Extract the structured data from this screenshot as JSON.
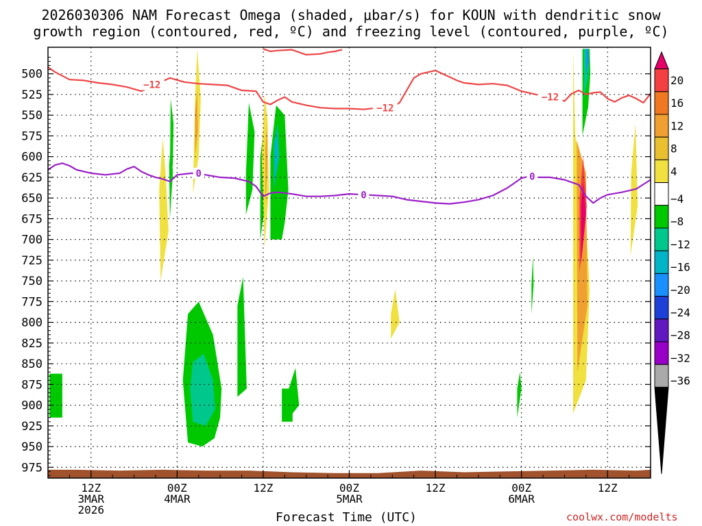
{
  "chart_data": {
    "type": "heatmap",
    "title": "2026030306 NAM Forecast Omega (shaded, μbar/s) for KOUN with dendritic snow",
    "subtitle": "growth region (contoured, red, ºC) and freezing level (contoured, purple, ºC)",
    "xlabel": "Forecast Time (UTC)",
    "ylabel": "",
    "credit": "coolwx.com/modelts",
    "y_reversed": true,
    "ylim": [
      988,
      468
    ],
    "xlim_hours": [
      6,
      90
    ],
    "y_ticks": [
      500,
      525,
      550,
      575,
      600,
      625,
      650,
      675,
      700,
      725,
      750,
      775,
      800,
      825,
      850,
      875,
      900,
      925,
      950,
      975
    ],
    "x_ticks": [
      {
        "hour": 12,
        "labels": [
          "12Z",
          "3MAR",
          "2026"
        ]
      },
      {
        "hour": 24,
        "labels": [
          "00Z",
          "4MAR"
        ]
      },
      {
        "hour": 36,
        "labels": [
          "12Z"
        ]
      },
      {
        "hour": 48,
        "labels": [
          "00Z",
          "5MAR"
        ]
      },
      {
        "hour": 60,
        "labels": [
          "12Z"
        ]
      },
      {
        "hour": 72,
        "labels": [
          "00Z",
          "6MAR"
        ]
      },
      {
        "hour": 84,
        "labels": [
          "12Z"
        ]
      }
    ],
    "grid": true,
    "colorbar": {
      "placement": "right",
      "labels": [
        "20",
        "16",
        "12",
        "8",
        "4",
        "−4",
        "−8",
        "−12",
        "−16",
        "−20",
        "−24",
        "−28",
        "−32",
        "−36"
      ],
      "colors": [
        "#e8006a",
        "#f44040",
        "#f07820",
        "#f0a030",
        "#e8c030",
        "#f0e040",
        "#ffffff",
        "#00c800",
        "#00c88c",
        "#00b4c8",
        "#1890ff",
        "#1c40d8",
        "#6018c0",
        "#9800c8",
        "#aaaaaa",
        "#000000"
      ]
    },
    "contour_labels": {
      "dgz": "−12",
      "freezing": "0"
    },
    "dgz_line": {
      "color": "#ee4444",
      "x": [
        6,
        7,
        9,
        11,
        13,
        15,
        17,
        19,
        21,
        23,
        25,
        27,
        29,
        31,
        33,
        35,
        36,
        37,
        38,
        39,
        40,
        42,
        44,
        46,
        48,
        50,
        52,
        54,
        55,
        56,
        57,
        58,
        59,
        60,
        61,
        62,
        63,
        64,
        66,
        68,
        70,
        72,
        74,
        76,
        78,
        79,
        80,
        81,
        82,
        83,
        84,
        85,
        86,
        87,
        88,
        89,
        90
      ],
      "y": [
        492,
        498,
        507,
        508,
        511,
        513,
        516,
        521,
        513,
        505,
        510,
        512,
        513,
        514,
        520,
        521,
        534,
        537,
        532,
        528,
        534,
        538,
        541,
        542,
        542,
        543,
        541,
        540,
        535,
        520,
        505,
        500,
        498,
        496,
        500,
        504,
        508,
        511,
        513,
        512,
        514,
        521,
        525,
        528,
        533,
        524,
        520,
        525,
        523,
        522,
        530,
        534,
        529,
        526,
        530,
        535,
        524
      ]
    },
    "dgz_top_line": {
      "color": "#ee4444",
      "x": [
        36,
        37,
        38,
        40,
        41,
        42,
        44,
        45,
        46,
        47
      ],
      "y": [
        470,
        473,
        472,
        471,
        474,
        477,
        476,
        474,
        473,
        471
      ]
    },
    "freezing_line": {
      "color": "#9b1ec8",
      "x": [
        6,
        7,
        8,
        9,
        10,
        12,
        14,
        16,
        17,
        18,
        19,
        20,
        21,
        22,
        23,
        24,
        26,
        28,
        30,
        32,
        34,
        35,
        36,
        37,
        38,
        40,
        42,
        44,
        46,
        48,
        50,
        52,
        54,
        56,
        58,
        60,
        62,
        63,
        64,
        66,
        68,
        70,
        71,
        72,
        73,
        74,
        76,
        78,
        79,
        80,
        81,
        82,
        83,
        84,
        86,
        88,
        90
      ],
      "y": [
        616,
        610,
        608,
        611,
        616,
        620,
        622,
        620,
        615,
        612,
        618,
        622,
        625,
        627,
        630,
        622,
        620,
        622,
        625,
        626,
        630,
        636,
        648,
        644,
        643,
        645,
        648,
        648,
        647,
        645,
        646,
        647,
        648,
        652,
        654,
        656,
        657,
        656,
        655,
        652,
        647,
        638,
        632,
        626,
        624,
        625,
        625,
        628,
        631,
        634,
        648,
        656,
        650,
        646,
        643,
        639,
        628
      ]
    },
    "omega_regions": [
      {
        "color": "#00c800",
        "x": [
          6.2,
          8.0,
          8.0,
          6.2
        ],
        "y": [
          915,
          915,
          862,
          862
        ]
      },
      {
        "color": "#00c800",
        "x": [
          6.5,
          7.5,
          7.5,
          6.5
        ],
        "y": [
          910,
          910,
          868,
          868
        ]
      },
      {
        "color": "#f0e040",
        "x": [
          21.7,
          22.8,
          22.4,
          22.0,
          21.5,
          21.7
        ],
        "y": [
          750,
          690,
          620,
          578,
          640,
          750
        ]
      },
      {
        "color": "#00c800",
        "x": [
          23.0,
          23.4,
          23.2,
          22.9
        ],
        "y": [
          675,
          620,
          580,
          610
        ]
      },
      {
        "color": "#00c800",
        "x": [
          23.1,
          23.5,
          23.4,
          23.0
        ],
        "y": [
          530,
          560,
          610,
          620
        ]
      },
      {
        "color": "#f0e040",
        "x": [
          26.2,
          27.0,
          27.3,
          26.8,
          26.5,
          26.2
        ],
        "y": [
          645,
          600,
          530,
          470,
          530,
          645
        ]
      },
      {
        "color": "#f0a030",
        "x": [
          26.5,
          26.9,
          26.8,
          26.5
        ],
        "y": [
          600,
          570,
          520,
          545
        ]
      },
      {
        "color": "#00c800",
        "x": [
          25.5,
          27.5,
          29.2,
          30.0,
          30.2,
          29.0,
          27.0,
          25.5,
          24.8,
          25.5
        ],
        "y": [
          945,
          950,
          940,
          915,
          880,
          815,
          775,
          790,
          870,
          945
        ]
      },
      {
        "color": "#00c88c",
        "x": [
          26.2,
          28.0,
          29.3,
          29.0,
          27.7,
          26.2,
          25.8,
          26.2
        ],
        "y": [
          920,
          925,
          905,
          870,
          838,
          848,
          880,
          920
        ]
      },
      {
        "color": "#00c800",
        "x": [
          32.4,
          33.7,
          33.2,
          32.4
        ],
        "y": [
          890,
          880,
          745,
          780
        ]
      },
      {
        "color": "#00c800",
        "x": [
          33.6,
          34.5,
          34.8,
          34.0,
          33.6
        ],
        "y": [
          670,
          640,
          570,
          535,
          620
        ]
      },
      {
        "color": "#00c800",
        "x": [
          35.6,
          36.4,
          36.2,
          35.6
        ],
        "y": [
          700,
          650,
          560,
          600
        ]
      },
      {
        "color": "#f0e040",
        "x": [
          36.2,
          36.8,
          36.6,
          36.2,
          35.8,
          36.2
        ],
        "y": [
          710,
          640,
          555,
          525,
          600,
          710
        ]
      },
      {
        "color": "#f0a030",
        "x": [
          36.3,
          36.6,
          36.5,
          36.3
        ],
        "y": [
          660,
          610,
          560,
          590
        ]
      },
      {
        "color": "#00c800",
        "x": [
          37.0,
          38.6,
          39.0,
          39.5,
          39.0,
          37.8,
          37.0
        ],
        "y": [
          700,
          700,
          680,
          640,
          550,
          538,
          600
        ]
      },
      {
        "color": "#00b4c8",
        "x": [
          37.5,
          38.2,
          38.0,
          37.5
        ],
        "y": [
          640,
          600,
          560,
          585
        ]
      },
      {
        "color": "#00c800",
        "x": [
          38.6,
          40.1,
          40.1,
          38.6
        ],
        "y": [
          880,
          880,
          920,
          920
        ]
      },
      {
        "color": "#00c800",
        "x": [
          39.2,
          41.0,
          40.5,
          39.2
        ],
        "y": [
          920,
          900,
          855,
          890
        ]
      },
      {
        "color": "#f0e040",
        "x": [
          53.8,
          55.0,
          54.4,
          53.8
        ],
        "y": [
          820,
          800,
          760,
          790
        ]
      },
      {
        "color": "#00c800",
        "x": [
          71.4,
          72.0,
          71.8,
          71.4
        ],
        "y": [
          915,
          880,
          860,
          880
        ]
      },
      {
        "color": "#00c800",
        "x": [
          73.4,
          73.7,
          73.6,
          73.4
        ],
        "y": [
          790,
          755,
          720,
          755
        ]
      },
      {
        "color": "#f0e040",
        "x": [
          79.2,
          81.0,
          81.5,
          80.8,
          79.5,
          79.2
        ],
        "y": [
          910,
          870,
          760,
          640,
          575,
          470
        ]
      },
      {
        "color": "#f0a030",
        "x": [
          79.8,
          81.2,
          81.0,
          79.7,
          79.8
        ],
        "y": [
          860,
          780,
          620,
          580,
          860
        ]
      },
      {
        "color": "#f44040",
        "x": [
          80.1,
          81.1,
          80.6,
          80.1
        ],
        "y": [
          740,
          660,
          600,
          650
        ]
      },
      {
        "color": "#e8006a",
        "x": [
          80.3,
          81.0,
          80.6,
          80.3
        ],
        "y": [
          730,
          670,
          630,
          660
        ]
      },
      {
        "color": "#00c800",
        "x": [
          80.5,
          81.3,
          81.6,
          81.5,
          80.5
        ],
        "y": [
          575,
          540,
          500,
          470,
          470
        ]
      },
      {
        "color": "#00c88c",
        "x": [
          80.7,
          81.4,
          81.3,
          80.7
        ],
        "y": [
          530,
          500,
          470,
          470
        ]
      },
      {
        "color": "#1890ff",
        "x": [
          81.0,
          81.4,
          81.3,
          81.0
        ],
        "y": [
          500,
          485,
          470,
          470
        ]
      },
      {
        "color": "#f0e040",
        "x": [
          87.2,
          88.2,
          87.9,
          87.3,
          87.2
        ],
        "y": [
          720,
          660,
          560,
          620,
          720
        ]
      }
    ],
    "ground": {
      "color": "#a0522d",
      "x": [
        6,
        10,
        16,
        22,
        28,
        34,
        40,
        46,
        52,
        58,
        64,
        70,
        76,
        82,
        88,
        90
      ],
      "y": [
        978,
        978,
        979,
        978,
        979,
        979,
        981,
        982,
        982,
        979,
        981,
        980,
        979,
        978,
        979,
        978
      ]
    }
  }
}
